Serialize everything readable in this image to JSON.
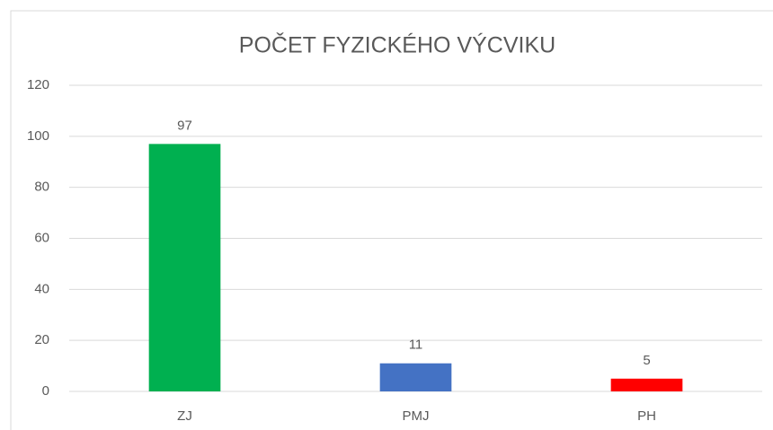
{
  "chart_data": {
    "type": "bar",
    "title": "POČET FYZICKÉHO VÝCVIKU",
    "categories": [
      "ZJ",
      "PMJ",
      "PH"
    ],
    "values": [
      97,
      11,
      5
    ],
    "colors": [
      "#00b050",
      "#4472c4",
      "#ff0000"
    ],
    "ylim": [
      0,
      120
    ],
    "yticks": [
      0,
      20,
      40,
      60,
      80,
      100,
      120
    ],
    "grid": true
  }
}
